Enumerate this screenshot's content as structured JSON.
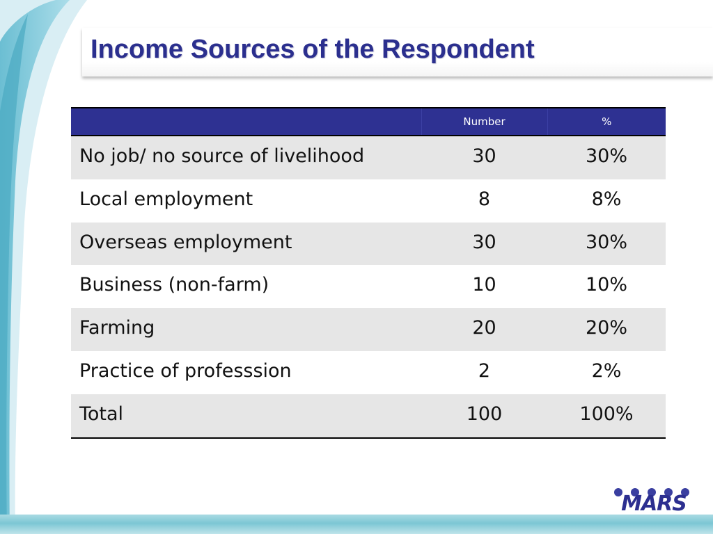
{
  "slide": {
    "title": "Income Sources of the Respondent"
  },
  "table": {
    "headers": [
      "",
      "Number",
      "%"
    ],
    "rows": [
      {
        "label": "No job/ no source of livelihood",
        "number": "30",
        "percent": "30%"
      },
      {
        "label": "Local employment",
        "number": "8",
        "percent": "8%"
      },
      {
        "label": "Overseas employment",
        "number": "30",
        "percent": "30%"
      },
      {
        "label": "Business (non-farm)",
        "number": "10",
        "percent": "10%"
      },
      {
        "label": "Farming",
        "number": "20",
        "percent": "20%"
      },
      {
        "label": "Practice of professsion",
        "number": "2",
        "percent": "2%"
      },
      {
        "label": "Total",
        "number": "100",
        "percent": "100%"
      }
    ]
  },
  "logo": {
    "text": "MARS"
  },
  "colors": {
    "title": "#2b2f8e",
    "header_bg": "#2e3192",
    "row_alt": "#e6e6e6",
    "accent_teal": "#7cc6d4"
  }
}
